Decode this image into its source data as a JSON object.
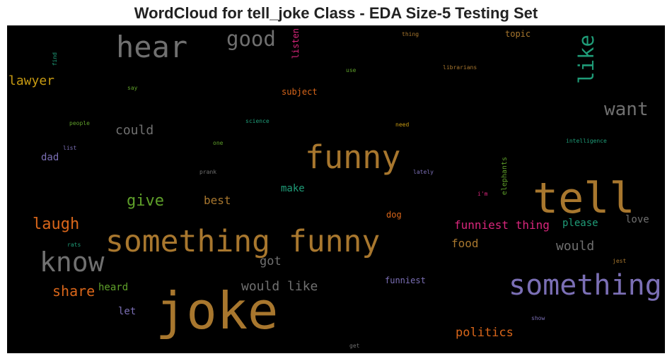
{
  "title": "WordCloud for tell_joke Class - EDA Size-5 Testing Set",
  "words": [
    {
      "text": "joke",
      "color": "#a8772e"
    },
    {
      "text": "tell",
      "color": "#a8772e"
    },
    {
      "text": "something funny",
      "color": "#a8772e"
    },
    {
      "text": "funny",
      "color": "#a8772e"
    },
    {
      "text": "something",
      "color": "#7b6fb5"
    },
    {
      "text": "know",
      "color": "#707070"
    },
    {
      "text": "hear",
      "color": "#707070"
    },
    {
      "text": "good",
      "color": "#707070"
    },
    {
      "text": "like",
      "color": "#1f9c78"
    },
    {
      "text": "want",
      "color": "#707070"
    },
    {
      "text": "laugh",
      "color": "#d9661a"
    },
    {
      "text": "lawyer",
      "color": "#c79a12"
    },
    {
      "text": "give",
      "color": "#5fa02a"
    },
    {
      "text": "share",
      "color": "#d9661a"
    },
    {
      "text": "could",
      "color": "#707070"
    },
    {
      "text": "would like",
      "color": "#707070"
    },
    {
      "text": "funniest thing",
      "color": "#d9267c"
    },
    {
      "text": "would",
      "color": "#707070"
    },
    {
      "text": "politics",
      "color": "#d9661a"
    },
    {
      "text": "best",
      "color": "#a8772e"
    },
    {
      "text": "got",
      "color": "#707070"
    },
    {
      "text": "food",
      "color": "#a8772e"
    },
    {
      "text": "make",
      "color": "#1f9c78"
    },
    {
      "text": "please",
      "color": "#1f9c78"
    },
    {
      "text": "love",
      "color": "#707070"
    },
    {
      "text": "heard",
      "color": "#5fa02a"
    },
    {
      "text": "let",
      "color": "#7b6fb5"
    },
    {
      "text": "dad",
      "color": "#7b6fb5"
    },
    {
      "text": "funniest",
      "color": "#7b6fb5"
    },
    {
      "text": "subject",
      "color": "#d9661a"
    },
    {
      "text": "topic",
      "color": "#a8772e"
    },
    {
      "text": "listen",
      "color": "#d9267c"
    },
    {
      "text": "dog",
      "color": "#d9661a"
    },
    {
      "text": "elephants",
      "color": "#5fa02a"
    },
    {
      "text": "find",
      "color": "#1f9c78"
    },
    {
      "text": "say",
      "color": "#5fa02a"
    },
    {
      "text": "use",
      "color": "#5fa02a"
    },
    {
      "text": "thing",
      "color": "#a8772e"
    },
    {
      "text": "librarians",
      "color": "#a8772e"
    },
    {
      "text": "people",
      "color": "#5fa02a"
    },
    {
      "text": "science",
      "color": "#1f9c78"
    },
    {
      "text": "need",
      "color": "#c79a12"
    },
    {
      "text": "one",
      "color": "#5fa02a"
    },
    {
      "text": "intelligence",
      "color": "#1f9c78"
    },
    {
      "text": "list",
      "color": "#7b6fb5"
    },
    {
      "text": "prank",
      "color": "#707070"
    },
    {
      "text": "lately",
      "color": "#7b6fb5"
    },
    {
      "text": "i'm",
      "color": "#d9267c"
    },
    {
      "text": "rats",
      "color": "#1f9c78"
    },
    {
      "text": "jest",
      "color": "#a8772e"
    },
    {
      "text": "show",
      "color": "#7b6fb5"
    },
    {
      "text": "get",
      "color": "#707070"
    }
  ]
}
